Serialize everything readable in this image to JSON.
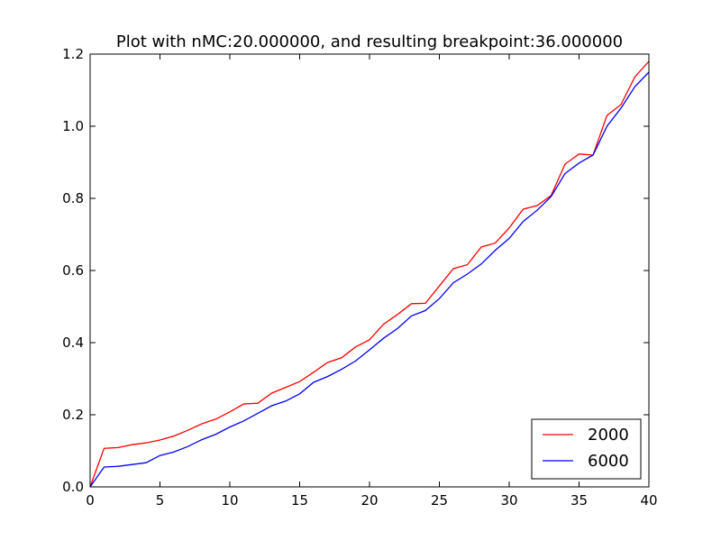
{
  "chart_data": {
    "type": "line",
    "title": "Plot with nMC:20.000000, and resulting breakpoint:36.000000",
    "xlabel": "",
    "ylabel": "",
    "xlim": [
      0,
      40
    ],
    "ylim": [
      0,
      1.2
    ],
    "xticks": [
      0,
      5,
      10,
      15,
      20,
      25,
      30,
      35,
      40
    ],
    "yticks": [
      0,
      0.2,
      0.4,
      0.6,
      0.8,
      1.0,
      1.2
    ],
    "xtick_labels": [
      "0",
      "5",
      "10",
      "15",
      "20",
      "25",
      "30",
      "35",
      "40"
    ],
    "ytick_labels": [
      "0.0",
      "0.2",
      "0.4",
      "0.6",
      "0.8",
      "1.0",
      "1.2"
    ],
    "grid": false,
    "legend_position": "bottom-right",
    "x": [
      0,
      1,
      2,
      3,
      4,
      5,
      6,
      7,
      8,
      9,
      10,
      11,
      12,
      13,
      14,
      15,
      16,
      17,
      18,
      19,
      20,
      21,
      22,
      23,
      24,
      25,
      26,
      27,
      28,
      29,
      30,
      31,
      32,
      33,
      34,
      35,
      36,
      37,
      38,
      39,
      40
    ],
    "series": [
      {
        "name": "2000",
        "color": "#ff0000",
        "values": [
          0.0,
          0.107,
          0.109,
          0.117,
          0.122,
          0.13,
          0.141,
          0.157,
          0.175,
          0.188,
          0.208,
          0.23,
          0.232,
          0.26,
          0.276,
          0.292,
          0.318,
          0.345,
          0.358,
          0.388,
          0.408,
          0.451,
          0.478,
          0.508,
          0.509,
          0.557,
          0.605,
          0.616,
          0.665,
          0.676,
          0.718,
          0.77,
          0.78,
          0.808,
          0.895,
          0.923,
          0.92,
          1.03,
          1.06,
          1.137,
          1.18
        ]
      },
      {
        "name": "6000",
        "color": "#0000ff",
        "values": [
          0.0,
          0.055,
          0.057,
          0.062,
          0.067,
          0.087,
          0.097,
          0.112,
          0.131,
          0.146,
          0.166,
          0.183,
          0.204,
          0.225,
          0.238,
          0.258,
          0.29,
          0.306,
          0.326,
          0.349,
          0.38,
          0.412,
          0.439,
          0.474,
          0.489,
          0.522,
          0.566,
          0.59,
          0.618,
          0.656,
          0.689,
          0.736,
          0.767,
          0.805,
          0.869,
          0.898,
          0.92,
          1.0,
          1.05,
          1.11,
          1.15
        ]
      }
    ]
  }
}
